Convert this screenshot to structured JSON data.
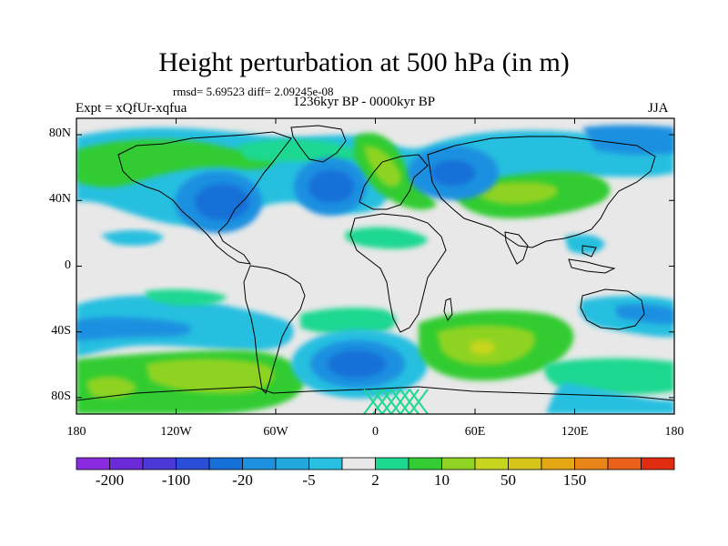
{
  "title": "Height perturbation at 500 hPa (in m)",
  "subtitle": "rmsd= 5.69523 diff= 2.09245e-08",
  "experiment": "Expt = xQfUr-xqfua",
  "period": "1236kyr BP - 0000kyr BP",
  "season": "JJA",
  "lat_ticks": [
    {
      "label": "80N",
      "lat": 80
    },
    {
      "label": "40N",
      "lat": 40
    },
    {
      "label": "0",
      "lat": 0
    },
    {
      "label": "40S",
      "lat": -40
    },
    {
      "label": "80S",
      "lat": -80
    }
  ],
  "lon_ticks": [
    {
      "label": "180",
      "lon": -180
    },
    {
      "label": "120W",
      "lon": -120
    },
    {
      "label": "60W",
      "lon": -60
    },
    {
      "label": "0",
      "lon": 0
    },
    {
      "label": "60E",
      "lon": 60
    },
    {
      "label": "120E",
      "lon": 120
    },
    {
      "label": "180",
      "lon": 180
    }
  ],
  "colorbar": {
    "colors": [
      "#8a2be2",
      "#6a2ad8",
      "#4b38d6",
      "#2a4fd6",
      "#1670d8",
      "#1e90e0",
      "#23a8de",
      "#28bfe0",
      "#e8e8e8",
      "#1fd890",
      "#33cc33",
      "#8fd323",
      "#c8d51e",
      "#d6c41a",
      "#e3a814",
      "#e8861a",
      "#e8601a",
      "#e02c10"
    ],
    "labels": [
      {
        "text": "-200",
        "index": 1
      },
      {
        "text": "-100",
        "index": 3
      },
      {
        "text": "-20",
        "index": 5
      },
      {
        "text": "-5",
        "index": 7
      },
      {
        "text": "2",
        "index": 9
      },
      {
        "text": "10",
        "index": 11
      },
      {
        "text": "50",
        "index": 13
      },
      {
        "text": "150",
        "index": 15
      }
    ]
  }
}
